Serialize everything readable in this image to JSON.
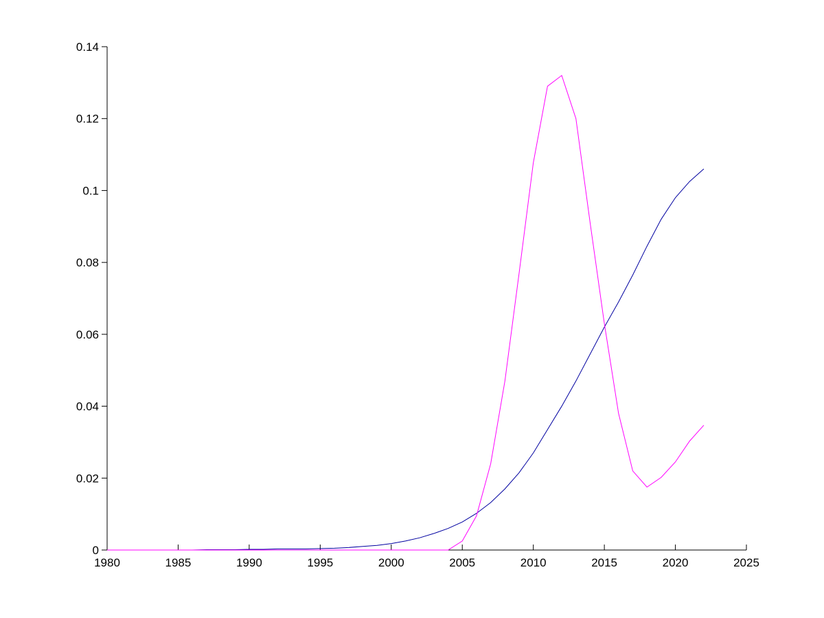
{
  "chart_data": {
    "type": "line",
    "x": [
      1980,
      1981,
      1982,
      1983,
      1984,
      1985,
      1986,
      1987,
      1988,
      1989,
      1990,
      1991,
      1992,
      1993,
      1994,
      1995,
      1996,
      1997,
      1998,
      1999,
      2000,
      2001,
      2002,
      2003,
      2004,
      2005,
      2006,
      2007,
      2008,
      2009,
      2010,
      2011,
      2012,
      2013,
      2014,
      2015,
      2016,
      2017,
      2018,
      2019,
      2020,
      2021,
      2022
    ],
    "series": [
      {
        "color": "#0000a0",
        "values": [
          0,
          0,
          0,
          0,
          0,
          0,
          0,
          0.0001,
          0.0001,
          0.0001,
          0.0002,
          0.0002,
          0.0003,
          0.0003,
          0.0003,
          0.0004,
          0.0005,
          0.0007,
          0.001,
          0.0013,
          0.0018,
          0.0025,
          0.0034,
          0.0046,
          0.006,
          0.0078,
          0.0102,
          0.0132,
          0.017,
          0.0215,
          0.027,
          0.0335,
          0.04,
          0.047,
          0.0545,
          0.062,
          0.069,
          0.0765,
          0.0845,
          0.092,
          0.098,
          0.1025,
          0.106
        ]
      },
      {
        "color": "#ff00ff",
        "values": [
          0,
          0,
          0,
          0,
          0,
          0,
          0,
          0,
          0,
          0,
          0,
          0,
          0,
          0,
          0,
          0,
          0,
          0,
          0,
          0,
          0,
          0,
          0,
          0,
          0,
          0.0025,
          0.0095,
          0.024,
          0.047,
          0.077,
          0.1077,
          0.129,
          0.132,
          0.12,
          0.091,
          0.063,
          0.038,
          0.022,
          0.0175,
          0.0202,
          0.0245,
          0.0303,
          0.0347
        ]
      }
    ],
    "xlim": [
      1980,
      2025
    ],
    "xticks": [
      1980,
      1985,
      1990,
      1995,
      2000,
      2005,
      2010,
      2015,
      2020,
      2025
    ],
    "ylim": [
      0,
      0.14
    ],
    "yticks": [
      0,
      0.02,
      0.04,
      0.06,
      0.08,
      0.1,
      0.12,
      0.14
    ]
  }
}
